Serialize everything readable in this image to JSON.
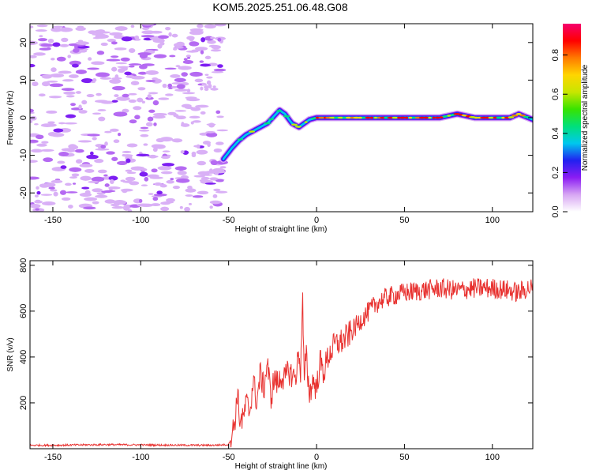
{
  "title": "KOM5.2025.251.06.48.G08",
  "chart_data": [
    {
      "type": "heatmap",
      "xlabel": "Height of straight line (km)",
      "ylabel": "Frequency (Hz)",
      "xlim": [
        -163,
        123
      ],
      "ylim": [
        -25,
        25
      ],
      "xticks": [
        -150,
        -100,
        -50,
        0,
        50,
        100
      ],
      "yticks": [
        -20,
        -10,
        0,
        10,
        20
      ],
      "grid": false,
      "noise_region_x": [
        -163,
        -53
      ],
      "ridge": {
        "x": [
          -53,
          -48,
          -44,
          -40,
          -36,
          -32,
          -28,
          -24,
          -21,
          -18,
          -14,
          -10,
          -7,
          -4,
          0,
          10,
          20,
          30,
          40,
          50,
          60,
          70,
          75,
          80,
          85,
          90,
          100,
          110,
          115,
          123
        ],
        "y": [
          -11,
          -8,
          -6,
          -4.5,
          -3.5,
          -2.5,
          -1.5,
          0.5,
          2,
          1,
          -1.5,
          -2.5,
          -1.5,
          -0.5,
          0,
          0,
          0,
          0,
          0,
          0,
          0,
          0,
          0.5,
          1,
          0.5,
          0,
          0,
          0,
          1,
          -0.5
        ]
      },
      "colorbar": {
        "label": "Normalized spectral amplitude",
        "ticks": [
          0.0,
          0.2,
          0.4,
          0.6,
          0.8
        ],
        "range": [
          0.0,
          0.96
        ],
        "colors": [
          "#ffffff",
          "#d7a6f3",
          "#8b1cf3",
          "#2121f0",
          "#00c8ee",
          "#00e07a",
          "#38e300",
          "#c8e600",
          "#ffd500",
          "#ff7a00",
          "#ff0000",
          "#f5006e"
        ]
      }
    },
    {
      "type": "line",
      "xlabel": "Height of straight line (km)",
      "ylabel": "SNR (v/v)",
      "xlim": [
        -163,
        123
      ],
      "ylim": [
        0,
        820
      ],
      "xticks": [
        -150,
        -100,
        -50,
        0,
        50,
        100
      ],
      "yticks": [
        200,
        400,
        600,
        800
      ],
      "grid": false,
      "series": [
        {
          "color": "#e8312f",
          "x": [
            -163,
            -150,
            -120,
            -90,
            -60,
            -50,
            -48,
            -46,
            -45,
            -44,
            -42,
            -40,
            -38,
            -36,
            -34,
            -32,
            -30,
            -28,
            -26,
            -24,
            -22,
            -20,
            -18,
            -16,
            -14,
            -12,
            -10,
            -9,
            -8,
            -7,
            -6,
            -5,
            -4,
            -2,
            0,
            2,
            4,
            6,
            8,
            10,
            12,
            15,
            20,
            25,
            30,
            35,
            40,
            45,
            50,
            60,
            70,
            80,
            90,
            100,
            110,
            115,
            120,
            123
          ],
          "y": [
            15,
            15,
            18,
            16,
            15,
            18,
            60,
            150,
            260,
            140,
            120,
            200,
            160,
            300,
            200,
            330,
            260,
            380,
            220,
            310,
            280,
            320,
            300,
            340,
            320,
            310,
            420,
            330,
            680,
            270,
            420,
            320,
            240,
            300,
            260,
            380,
            330,
            390,
            420,
            450,
            460,
            470,
            510,
            560,
            600,
            640,
            660,
            670,
            680,
            690,
            700,
            690,
            700,
            700,
            690,
            680,
            700,
            700
          ]
        }
      ]
    }
  ]
}
